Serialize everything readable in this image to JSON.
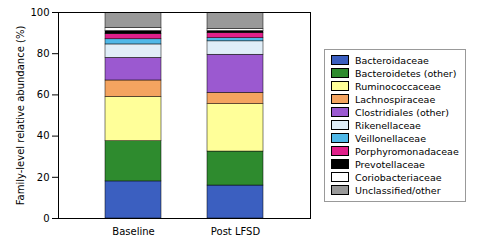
{
  "chart_data": {
    "type": "bar",
    "stacked": true,
    "legend": "right",
    "ylabel": "Family-level relative abundance (%)",
    "categories": [
      "Baseline",
      "Post LFSD"
    ],
    "ylim": [
      0,
      100
    ],
    "yticks": [
      0,
      20,
      40,
      60,
      80,
      100
    ],
    "series": [
      {
        "name": "Bacteroidaceae",
        "color": "#3b5fc0",
        "values": [
          18,
          16
        ]
      },
      {
        "name": "Bacteroidetes (other)",
        "color": "#2e8b2e",
        "values": [
          19.5,
          16.5
        ]
      },
      {
        "name": "Ruminococcaceae",
        "color": "#ffff99",
        "values": [
          21.5,
          23
        ]
      },
      {
        "name": "Lachnospiraceae",
        "color": "#f4a460",
        "values": [
          8,
          5.5
        ]
      },
      {
        "name": "Clostridiales (other)",
        "color": "#9b59d0",
        "values": [
          11,
          18.5
        ]
      },
      {
        "name": "Rikenellaceae",
        "color": "#e0eef8",
        "values": [
          6.5,
          6.5
        ]
      },
      {
        "name": "Veillonellaceae",
        "color": "#4fb8e8",
        "values": [
          2.5,
          1.5
        ]
      },
      {
        "name": "Porphyromonadaceae",
        "color": "#e0208a",
        "values": [
          2.5,
          2.5
        ]
      },
      {
        "name": "Prevotellaceae",
        "color": "#000000",
        "values": [
          1.5,
          1
        ]
      },
      {
        "name": "Coriobacteriaceae",
        "color": "#ffffff",
        "values": [
          1.5,
          1
        ]
      },
      {
        "name": "Unclassified/other",
        "color": "#999999",
        "values": [
          7.5,
          8
        ]
      }
    ]
  }
}
